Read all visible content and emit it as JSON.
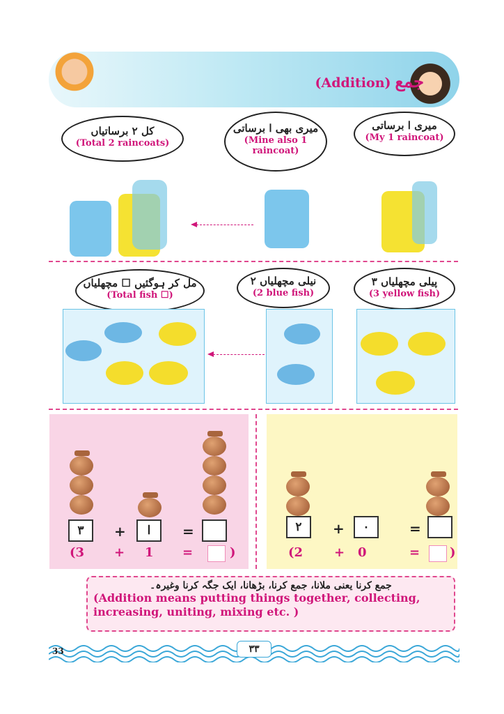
{
  "header": {
    "title_en": "(Addition)",
    "title_ur": "جمع"
  },
  "section_raincoats": {
    "bubbles": [
      {
        "ur": "کل ۲ برساتیاں",
        "en": "(Total 2 raincoats)"
      },
      {
        "ur": "میری بھی ا برساتی",
        "en": "(Mine also 1 raincoat)"
      },
      {
        "ur": "میری ا برساتی",
        "en": "(My 1 raincoat)"
      }
    ]
  },
  "section_fish": {
    "bubbles": [
      {
        "ur": "مل کر ہوگئیں ☐ مچھلیاں",
        "en": "(Total fish ☐)"
      },
      {
        "ur": "۲ نیلی مچھلیاں",
        "en": "(2 blue fish)"
      },
      {
        "ur": "۳ پیلی مچھلیاں",
        "en": "(3 yellow fish)"
      }
    ]
  },
  "pots_left": {
    "a": "۳",
    "b": "ا",
    "plus": "+",
    "eq": "=",
    "en_open": "(3",
    "en_plus": "+",
    "en_b": "1",
    "en_eq": "=",
    "en_close": ")"
  },
  "pots_right": {
    "a": "۲",
    "b": "۰",
    "plus": "+",
    "eq": "=",
    "en_open": "(2",
    "en_plus": "+",
    "en_b": "0",
    "en_eq": "=",
    "en_close": ")"
  },
  "note": {
    "ur": "جمع کرنا یعنی ملانا، جمع کرنا، بڑھانا، ایک جگہ کرنا وغیرہ۔",
    "en_line1": "(Addition means putting things together, collecting,",
    "en_line2": "increasing, uniting, mixing etc. )"
  },
  "footer": {
    "page_number": "33",
    "page_number_ur": "۳۳"
  },
  "colors": {
    "accent": "#d0167a",
    "sky": "#8fd3ea",
    "pink_panel": "#f9d5e6",
    "yellow_panel": "#fdf7c4"
  }
}
